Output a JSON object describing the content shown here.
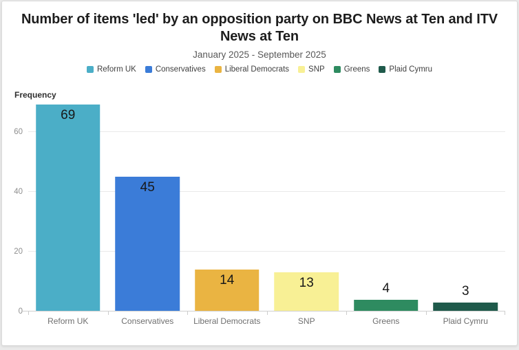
{
  "chart_data": {
    "type": "bar",
    "title": "Number of items 'led' by an opposition party on BBC News at Ten and ITV News at Ten",
    "subtitle": "January 2025 - September 2025",
    "ylabel": "Frequency",
    "xlabel": "",
    "categories": [
      "Reform UK",
      "Conservatives",
      "Liberal Democrats",
      "SNP",
      "Greens",
      "Plaid Cymru"
    ],
    "values": [
      69,
      45,
      14,
      13,
      4,
      3
    ],
    "bar_colors": [
      "#4BAEC7",
      "#3B7CD8",
      "#EAB442",
      "#F8F095",
      "#2E8B60",
      "#1F5A4B"
    ],
    "legend_entries": [
      "Reform UK",
      "Conservatives",
      "Liberal Democrats",
      "SNP",
      "Greens",
      "Plaid Cymru"
    ],
    "legend_position": "top",
    "ylim": [
      0,
      70
    ],
    "yticks": [
      0,
      20,
      40,
      60
    ],
    "grid": true,
    "value_labels_shown": true
  },
  "colors": {
    "page_background": "#eaeaea",
    "card_background": "#ffffff",
    "card_border": "#dcdcdc",
    "title_text": "#1d1d1d",
    "subtitle_text": "#585858",
    "legend_text": "#3f3f3f",
    "axis_tick_text": "#8f8f8f",
    "category_text": "#6f6f6f",
    "value_text": "#181818",
    "gridline": "#e9e9e9",
    "baseline": "#cfcfcf"
  }
}
